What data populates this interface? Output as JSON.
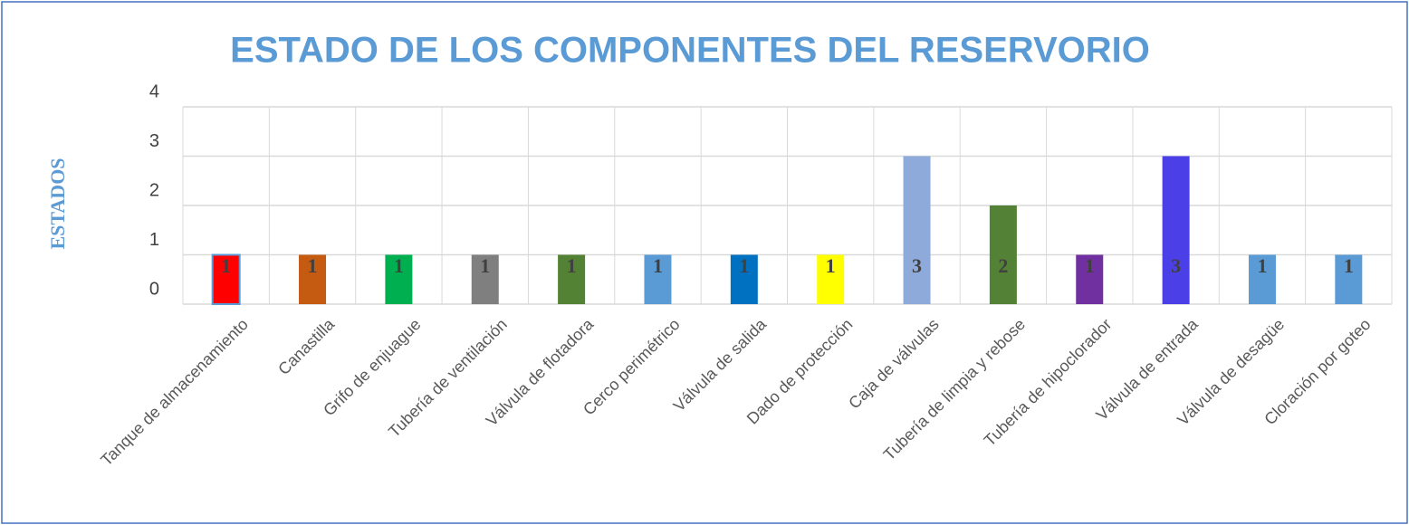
{
  "chart_data": {
    "type": "bar",
    "title": "ESTADO DE  LOS  COMPONENTES DEL  RESERVORIO",
    "y_label": "ESTADOS",
    "categories": [
      "Tanque de almacenamiento",
      "Canastilla",
      "Grifo de enjuague",
      "Tubería de ventilación",
      "Válvula de flotadora",
      "Cerco perimétrico",
      "Válvula de salida",
      "Dado de protección",
      "Caja de válvulas",
      "Tubería de limpia y rebose",
      "Tubería de hipoclorador",
      "Válvula de entrada",
      "Válvula de desagüe",
      "Cloración por goteo"
    ],
    "values": [
      1,
      1,
      1,
      1,
      1,
      1,
      1,
      1,
      3,
      2,
      1,
      3,
      1,
      1
    ],
    "colors": [
      "#ff0000",
      "#c55a11",
      "#00b050",
      "#7f7f7f",
      "#548235",
      "#5b9bd5",
      "#0070c0",
      "#ffff00",
      "#8eaadb",
      "#538135",
      "#7030a0",
      "#4b3fe8",
      "#5b9bd5",
      "#5b9bd5"
    ],
    "ylim": [
      0,
      4
    ],
    "yticks": [
      0,
      1,
      2,
      3,
      4
    ],
    "grid": true,
    "data_labels": true
  }
}
